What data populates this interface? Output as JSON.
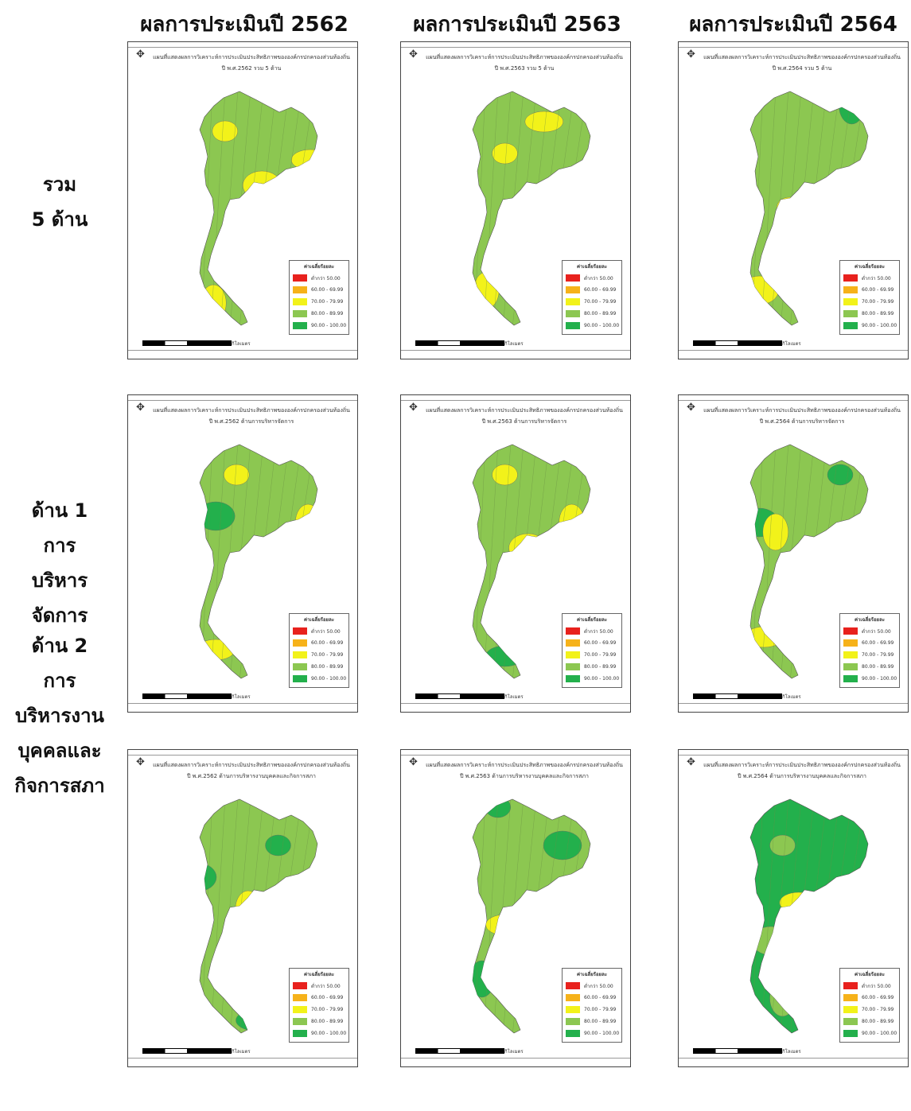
{
  "columns": [
    "ผลการประเมินปี 2562",
    "ผลการประเมินปี 2563",
    "ผลการประเมินปี 2564"
  ],
  "rows": [
    {
      "label_lines": [
        "รวม",
        "5 ด้าน"
      ]
    },
    {
      "label_lines": [
        "ด้าน 1",
        "การ",
        "บริหาร",
        "จัดการ"
      ]
    },
    {
      "label_lines": [
        "ด้าน 2",
        "การ",
        "บริหารงาน",
        "บุคคลและ",
        "กิจการสภา"
      ]
    }
  ],
  "panels": [
    [
      {
        "title_line1": "แผนที่แสดงผลการวิเคราะห์การประเมินประสิทธิภาพขององค์กรปกครองส่วนท้องถิ่น",
        "title_line2": "ปี พ.ศ.2562 รวม 5 ด้าน",
        "base_color": "#8cc751",
        "accents": [
          [
            "#f2f21a",
            0.42,
            0.28
          ],
          [
            "#f2f21a",
            0.58,
            0.45
          ],
          [
            "#f2f21a",
            0.37,
            0.82
          ],
          [
            "#f2f21a",
            0.79,
            0.37
          ]
        ]
      },
      {
        "title_line1": "แผนที่แสดงผลการวิเคราะห์การประเมินประสิทธิภาพขององค์กรปกครองส่วนท้องถิ่น",
        "title_line2": "ปี พ.ศ.2563 รวม 5 ด้าน",
        "base_color": "#8cc751",
        "accents": [
          [
            "#f2f21a",
            0.45,
            0.35
          ],
          [
            "#f29c1a",
            0.55,
            0.52
          ],
          [
            "#f2f21a",
            0.37,
            0.78
          ],
          [
            "#f2f21a",
            0.62,
            0.25
          ]
        ]
      },
      {
        "title_line1": "แผนที่แสดงผลการวิเคราะห์การประเมินประสิทธิภาพขององค์กรปกครองส่วนท้องถิ่น",
        "title_line2": "ปี พ.ศ.2564 รวม 5 ด้าน",
        "base_color": "#8cc751",
        "accents": [
          [
            "#f2f21a",
            0.48,
            0.52
          ],
          [
            "#f2f21a",
            0.35,
            0.78
          ],
          [
            "#23b04c",
            0.75,
            0.2
          ]
        ]
      }
    ],
    [
      {
        "title_line1": "แผนที่แสดงผลการวิเคราะห์การประเมินประสิทธิภาพขององค์กรปกครองส่วนท้องถิ่น",
        "title_line2": "ปี พ.ศ.2562 ด้านการบริหารจัดการ",
        "base_color": "#8cc751",
        "accents": [
          [
            "#f2f21a",
            0.47,
            0.25
          ],
          [
            "#23b04c",
            0.38,
            0.38
          ],
          [
            "#f2f21a",
            0.78,
            0.4
          ],
          [
            "#f2f21a",
            0.38,
            0.8
          ]
        ]
      },
      {
        "title_line1": "แผนที่แสดงผลการวิเคราะห์การประเมินประสิทธิภาพขององค์กรปกครองส่วนท้องถิ่น",
        "title_line2": "ปี พ.ศ.2563 ด้านการบริหารจัดการ",
        "base_color": "#8cc751",
        "accents": [
          [
            "#f2f21a",
            0.45,
            0.25
          ],
          [
            "#f2f21a",
            0.55,
            0.48
          ],
          [
            "#f2f21a",
            0.74,
            0.4
          ],
          [
            "#23b04c",
            0.45,
            0.82
          ]
        ]
      },
      {
        "title_line1": "แผนที่แสดงผลการวิเคราะห์การประเมินประสิทธิภาพขององค์กรปกครองส่วนท้องถิ่น",
        "title_line2": "ปี พ.ศ.2564 ด้านการบริหารจัดการ",
        "base_color": "#8cc751",
        "accents": [
          [
            "#23b04c",
            0.7,
            0.25
          ],
          [
            "#23b04c",
            0.35,
            0.4
          ],
          [
            "#f2f21a",
            0.42,
            0.43
          ],
          [
            "#f2f21a",
            0.37,
            0.76
          ]
        ]
      }
    ],
    [
      {
        "title_line1": "แผนที่แสดงผลการวิเคราะห์การประเมินประสิทธิภาพขององค์กรปกครองส่วนท้องถิ่น",
        "title_line2": "ปี พ.ศ.2562 ด้านการบริหารงานบุคคลและกิจการสภา",
        "base_color": "#8cc751",
        "accents": [
          [
            "#23b04c",
            0.65,
            0.3
          ],
          [
            "#23b04c",
            0.3,
            0.4
          ],
          [
            "#f2f21a",
            0.52,
            0.5
          ],
          [
            "#23b04c",
            0.55,
            0.85
          ]
        ]
      },
      {
        "title_line1": "แผนที่แสดงผลการวิเคราะห์การประเมินประสิทธิภาพขององค์กรปกครองส่วนท้องถิ่น",
        "title_line2": "ปี พ.ศ.2563 ด้านการบริหารงานบุคคลและกิจการสภา",
        "base_color": "#8cc751",
        "accents": [
          [
            "#23b04c",
            0.42,
            0.18
          ],
          [
            "#23b04c",
            0.7,
            0.3
          ],
          [
            "#23b04c",
            0.35,
            0.72
          ],
          [
            "#f2f21a",
            0.45,
            0.55
          ]
        ]
      },
      {
        "title_line1": "แผนที่แสดงผลการวิเคราะห์การประเมินประสิทธิภาพขององค์กรปกครองส่วนท้องถิ่น",
        "title_line2": "ปี พ.ศ.2564 ด้านการบริหารงานบุคคลและกิจการสภา",
        "base_color": "#23b04c",
        "accents": [
          [
            "#8cc751",
            0.45,
            0.3
          ],
          [
            "#8cc751",
            0.4,
            0.6
          ],
          [
            "#8cc751",
            0.45,
            0.78
          ],
          [
            "#f2f21a",
            0.52,
            0.48
          ]
        ]
      }
    ]
  ],
  "legend": {
    "title": "ค่าเฉลี่ยร้อยละ",
    "items": [
      {
        "label": "ต่ำกว่า 50.00",
        "color": "#e8211d"
      },
      {
        "label": "60.00 - 69.99",
        "color": "#f6b21a"
      },
      {
        "label": "70.00 - 79.99",
        "color": "#f2f21a"
      },
      {
        "label": "80.00 - 89.99",
        "color": "#8cc751"
      },
      {
        "label": "90.00 - 100.00",
        "color": "#23b04c"
      }
    ]
  },
  "scale_label": "กิโลเมตร"
}
